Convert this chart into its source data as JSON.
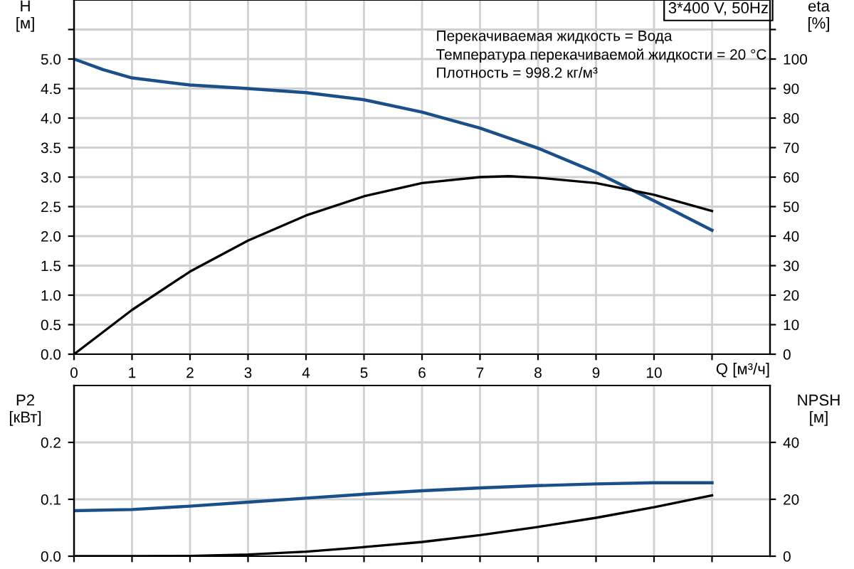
{
  "chart_data": [
    {
      "type": "line",
      "xlabel": "Q [м³/ч]",
      "ylabel": "H\n[м]",
      "y2label": "eta\n[%]",
      "annotations": [
        "3*400 V, 50Hz",
        "Перекачиваемая жидкость = Вода",
        "Температура перекачиваемой жидкости = 20 °C",
        "Плотность = 998.2 кг/м³"
      ],
      "xlim": [
        0,
        12
      ],
      "xticks": [
        0,
        1,
        2,
        3,
        4,
        5,
        6,
        7,
        8,
        9,
        10,
        {
          "value": 11,
          "label": null
        }
      ],
      "ylim": [
        0,
        6
      ],
      "yticks": [
        {
          "value": 0,
          "label": "0.0"
        },
        0.5,
        {
          "value": 1,
          "label": "1.0"
        },
        1.5,
        {
          "value": 2,
          "label": "2.0"
        },
        2.5,
        {
          "value": 3,
          "label": "3.0"
        },
        3.5,
        {
          "value": 4,
          "label": "4.0"
        },
        4.5,
        {
          "value": 5,
          "label": "5.0"
        },
        {
          "value": 5.5,
          "label": null
        }
      ],
      "y2lim": [
        0,
        120
      ],
      "y2ticks": [
        0,
        10,
        20,
        30,
        40,
        50,
        60,
        70,
        80,
        90,
        100,
        {
          "value": 110,
          "label": null
        }
      ],
      "grid": true,
      "series": [
        {
          "color": "#1a4f8a",
          "x": [
            0,
            0.5,
            1,
            2,
            3,
            4,
            5,
            6,
            7,
            8,
            9,
            10,
            11
          ],
          "values": [
            5.0,
            4.82,
            4.68,
            4.56,
            4.5,
            4.43,
            4.31,
            4.1,
            3.83,
            3.49,
            3.08,
            2.6,
            2.1
          ]
        },
        {
          "color": "#000000",
          "axis": "y2",
          "x": [
            0,
            1,
            2,
            3,
            4,
            5,
            6,
            7,
            7.5,
            8,
            9,
            10,
            11
          ],
          "values": [
            0,
            15,
            28,
            38.5,
            47,
            53.5,
            58,
            60,
            60.3,
            59.8,
            58,
            54,
            48.5
          ]
        }
      ]
    },
    {
      "type": "line",
      "ylabel": "P2\n[кВт]",
      "y2label": "NPSH\n[м]",
      "tick_labels": "y",
      "xlim": [
        0,
        12
      ],
      "xticks": [
        0,
        1,
        2,
        3,
        4,
        5,
        6,
        7,
        8,
        9,
        10,
        11
      ],
      "ylim": [
        0,
        0.3
      ],
      "yticks": [
        {
          "value": 0,
          "label": "0.0"
        },
        0.1,
        0.2
      ],
      "y2lim": [
        0,
        60
      ],
      "y2ticks": [
        0,
        20,
        40
      ],
      "grid": true,
      "series": [
        {
          "color": "#1a4f8a",
          "x": [
            0,
            1,
            2,
            3,
            4,
            5,
            6,
            7,
            8,
            9,
            10,
            11
          ],
          "values": [
            0.08,
            0.082,
            0.088,
            0.095,
            0.102,
            0.109,
            0.115,
            0.12,
            0.124,
            0.127,
            0.129,
            0.129
          ]
        },
        {
          "color": "#000000",
          "axis": "y2",
          "x": [
            0,
            1,
            2,
            3,
            4,
            5,
            6,
            7,
            8,
            9,
            10,
            11
          ],
          "values": [
            0,
            0,
            0.1,
            0.6,
            1.6,
            3.2,
            5.0,
            7.4,
            10.3,
            13.5,
            17.2,
            21.4
          ]
        }
      ]
    }
  ]
}
